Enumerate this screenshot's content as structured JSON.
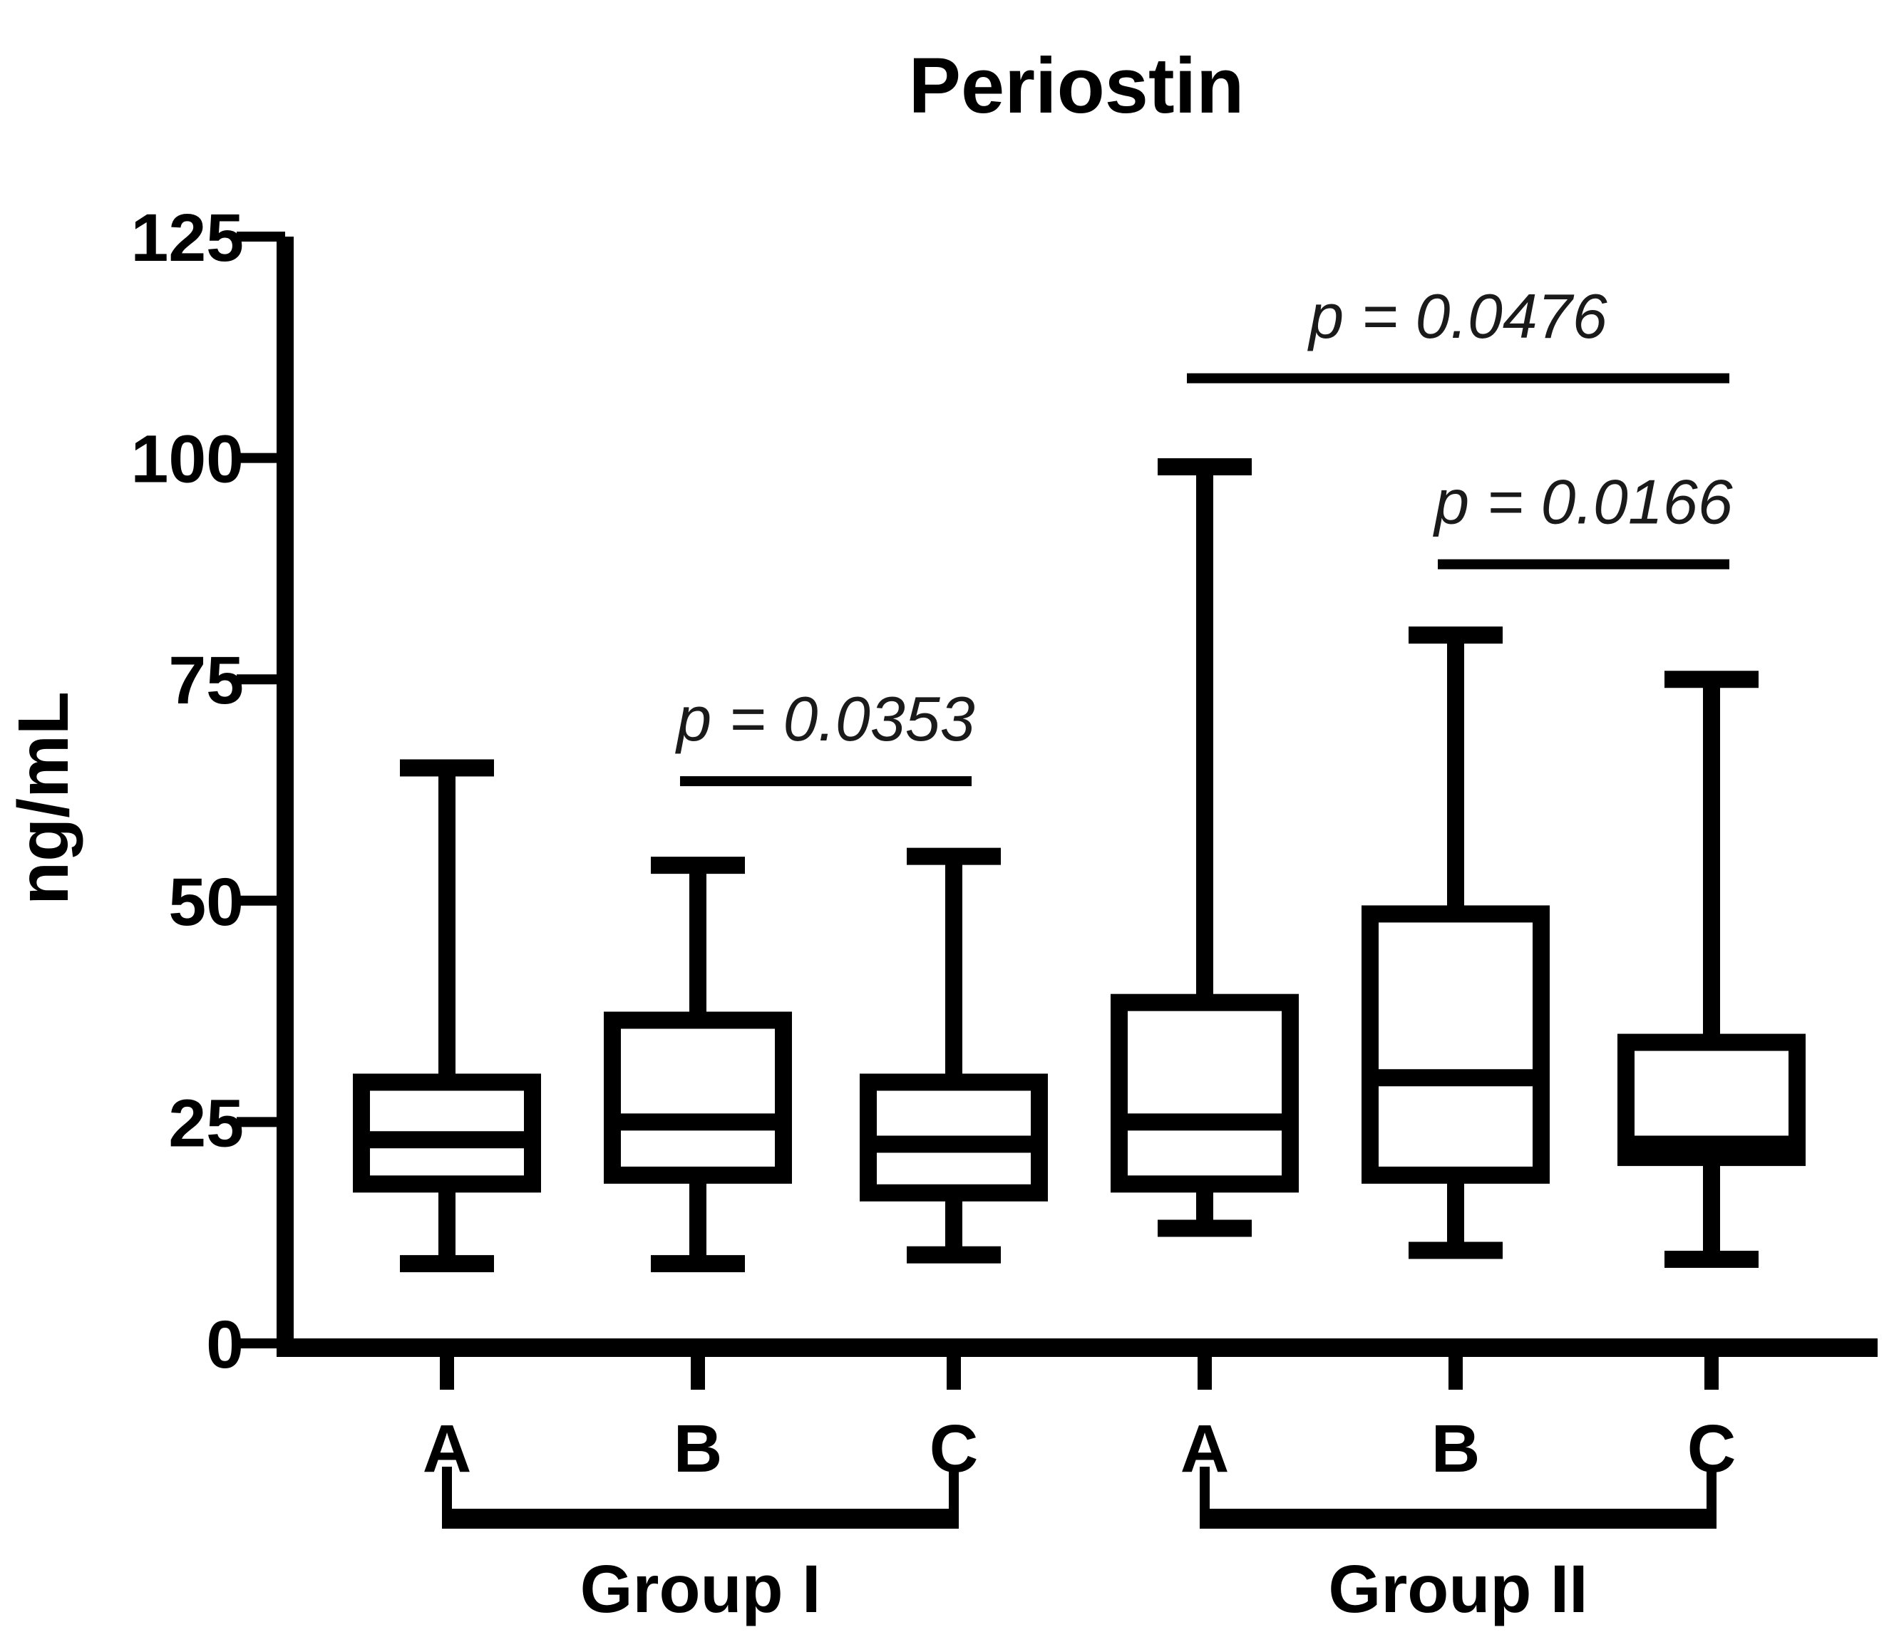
{
  "page": {
    "background": "#ffffff",
    "ink_color": "#000000"
  },
  "title": "Periostin",
  "y_axis": {
    "label": "ng/mL",
    "ticks": [
      "0",
      "25",
      "50",
      "75",
      "100",
      "125"
    ]
  },
  "x_axis": {
    "categories": [
      "A",
      "B",
      "C",
      "A",
      "B",
      "C"
    ],
    "group_labels": [
      "Group I",
      "Group II"
    ]
  },
  "chart_data": {
    "type": "box",
    "title": "Periostin",
    "ylabel": "ng/mL",
    "ylim": [
      0,
      125
    ],
    "yticks": [
      0,
      25,
      50,
      75,
      100,
      125
    ],
    "grid": false,
    "categories": [
      "A",
      "B",
      "C",
      "A",
      "B",
      "C"
    ],
    "groups": [
      {
        "label": "Group I",
        "boxes": [
          {
            "label": "A",
            "min": 9,
            "q1": 18,
            "median": 23,
            "q3": 29.5,
            "max": 65
          },
          {
            "label": "B",
            "min": 9,
            "q1": 19,
            "median": 25,
            "q3": 36.5,
            "max": 54
          },
          {
            "label": "C",
            "min": 10,
            "q1": 17,
            "median": 22.5,
            "q3": 29.5,
            "max": 55
          }
        ]
      },
      {
        "label": "Group II",
        "boxes": [
          {
            "label": "A",
            "min": 13,
            "q1": 18,
            "median": 25,
            "q3": 38.5,
            "max": 99
          },
          {
            "label": "B",
            "min": 10.5,
            "q1": 19,
            "median": 30,
            "q3": 48.5,
            "max": 80
          },
          {
            "label": "C",
            "min": 9.5,
            "q1": 21,
            "median": 22.5,
            "q3": 34,
            "max": 75
          }
        ]
      }
    ],
    "annotations": [
      {
        "text": "p = 0.0353",
        "col_from": 1,
        "col_to": 2,
        "y_value": 63.5
      },
      {
        "text": "p = 0.0476",
        "col_from": 3,
        "col_to": 5,
        "y_value": 109
      },
      {
        "text": "p = 0.0166",
        "col_from": 4,
        "col_to": 5,
        "y_value": 88
      }
    ]
  }
}
